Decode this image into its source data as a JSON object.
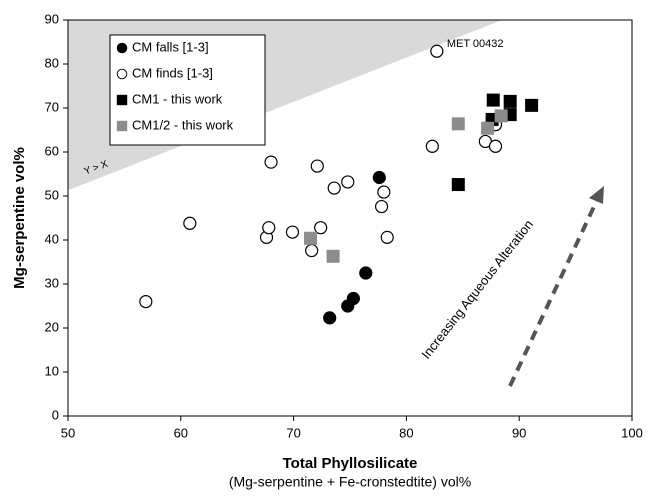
{
  "chart_data": {
    "type": "scatter",
    "xlabel": "Total Phyllosilicate",
    "xlabel_sub": "(Mg-serpentine + Fe-cronstedtite) vol%",
    "ylabel": "Mg-serpentine vol%",
    "xlim": [
      50,
      100
    ],
    "xticks": [
      50,
      60,
      70,
      80,
      90,
      100
    ],
    "ylim": [
      0,
      90
    ],
    "yticks": [
      0,
      10,
      20,
      30,
      40,
      50,
      60,
      70,
      80,
      90
    ],
    "legend": "upper left",
    "region": {
      "label": "Y > X",
      "color": "#d9d9d9",
      "x": [
        50,
        88.5
      ],
      "y": [
        51.3,
        90
      ]
    },
    "annotations": [
      "MET 00432",
      "Increasing Aqueous Alteration"
    ],
    "series": [
      {
        "name": "CM falls [1-3]",
        "marker": "circle",
        "color": "#000000",
        "edgecolor": "#000000",
        "x": [
          73.2,
          74.8,
          75.3,
          76.4,
          77.6
        ],
        "values": [
          22.3,
          25,
          26.7,
          32.5,
          54.2
        ]
      },
      {
        "name": "CM finds [1-3]",
        "marker": "circle",
        "color": "#ffffff",
        "edgecolor": "#000000",
        "x": [
          56.9,
          60.8,
          67.6,
          67.8,
          68,
          69.9,
          71.6,
          72.1,
          72.4,
          73.6,
          74.8,
          77.8,
          78,
          78.3,
          82.3,
          82.7,
          87,
          87.9,
          87.9
        ],
        "values": [
          26,
          43.8,
          40.6,
          42.8,
          57.7,
          41.8,
          37.6,
          56.8,
          42.8,
          51.8,
          53.2,
          47.6,
          50.9,
          40.6,
          61.3,
          82.9,
          62.4,
          61.3,
          66.2
        ]
      },
      {
        "name": "CM1 - this work",
        "marker": "square",
        "color": "#000000",
        "edgecolor": "#000000",
        "x": [
          84.6,
          87.7,
          87.6,
          89.2,
          89.2,
          91.1
        ],
        "values": [
          52.6,
          71.8,
          67.4,
          71.5,
          68.5,
          70.6
        ]
      },
      {
        "name": "CM1/2 - this work",
        "marker": "square",
        "color": "#8c8c8c",
        "edgecolor": "#8c8c8c",
        "x": [
          71.5,
          73.5,
          84.6,
          87.2,
          88.4
        ],
        "values": [
          40.4,
          36.3,
          66.4,
          65.4,
          68.2
        ]
      }
    ]
  }
}
